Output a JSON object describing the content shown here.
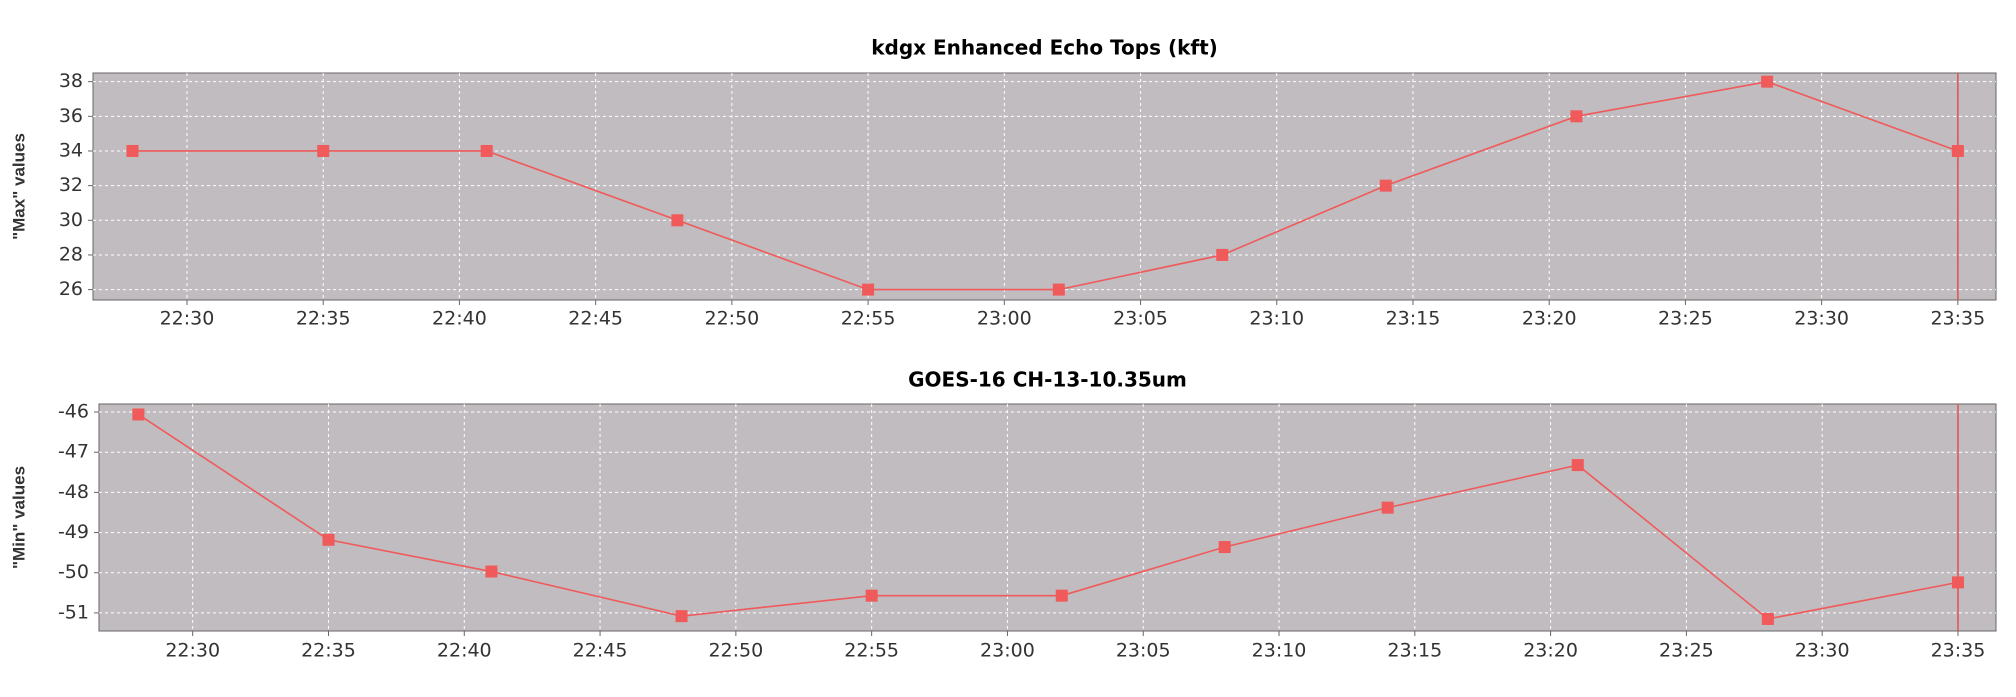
{
  "chart_data": [
    {
      "type": "line",
      "title": "kdgx Enhanced Echo Tops (kft)",
      "y_label": "\"Max\" values",
      "x": [
        "22:28",
        "22:35",
        "22:41",
        "22:48",
        "22:55",
        "23:02",
        "23:08",
        "23:14",
        "23:21",
        "23:28",
        "23:35"
      ],
      "series": [
        {
          "name": "Max",
          "color": "#f05a5a",
          "values": [
            34,
            34,
            34,
            30,
            26,
            26,
            28,
            32,
            36,
            38,
            34
          ]
        }
      ],
      "xlim": [
        "22:26:33",
        "23:36:24"
      ],
      "xticks": [
        "22:30",
        "22:35",
        "22:40",
        "22:45",
        "22:50",
        "22:55",
        "23:00",
        "23:05",
        "23:10",
        "23:15",
        "23:20",
        "23:25",
        "23:30",
        "23:35"
      ],
      "ylim": [
        25.4,
        38.5
      ],
      "yticks": [
        26,
        28,
        30,
        32,
        34,
        36,
        38
      ],
      "grid": true,
      "cursor_x": "23:35"
    },
    {
      "type": "line",
      "title": "GOES-16 CH-13-10.35um",
      "y_label": "\"Min\" values",
      "x": [
        "22:28",
        "22:35",
        "22:41",
        "22:48",
        "22:55",
        "23:02",
        "23:08",
        "23:14",
        "23:21",
        "23:28",
        "23:35"
      ],
      "series": [
        {
          "name": "Min",
          "color": "#f05a5a",
          "values": [
            -46.06,
            -49.18,
            -49.97,
            -51.08,
            -50.57,
            -50.57,
            -49.36,
            -48.38,
            -47.32,
            -51.15,
            -50.24
          ]
        }
      ],
      "xlim": [
        "22:26:33",
        "23:36:24"
      ],
      "xticks": [
        "22:30",
        "22:35",
        "22:40",
        "22:45",
        "22:50",
        "22:55",
        "23:00",
        "23:05",
        "23:10",
        "23:15",
        "23:20",
        "23:25",
        "23:30",
        "23:35"
      ],
      "ylim": [
        -51.45,
        -45.8
      ],
      "yticks": [
        -46,
        -47,
        -48,
        -49,
        -50,
        -51
      ],
      "grid": true,
      "cursor_x": "23:35"
    }
  ]
}
